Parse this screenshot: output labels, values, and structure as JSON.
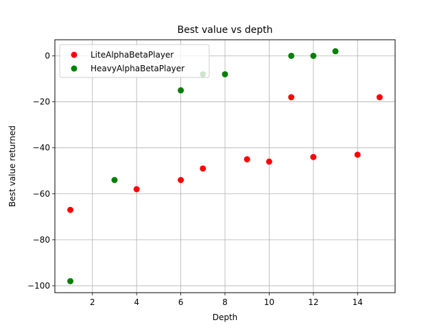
{
  "chart_data": {
    "type": "scatter",
    "title": "Best value vs depth",
    "xlabel": "Depth",
    "ylabel": "Best value returned",
    "xlim": [
      0.3,
      15.7
    ],
    "ylim": [
      -103,
      7
    ],
    "xticks": [
      2,
      4,
      6,
      8,
      10,
      12,
      14
    ],
    "yticks": [
      -100,
      -80,
      -60,
      -40,
      -20,
      0
    ],
    "grid": true,
    "legend_position": "upper-left",
    "series": [
      {
        "name": "LiteAlphaBetaPlayer",
        "color": "#ff0000",
        "points": [
          {
            "x": 1,
            "y": -67
          },
          {
            "x": 4,
            "y": -58
          },
          {
            "x": 6,
            "y": -54
          },
          {
            "x": 7,
            "y": -49
          },
          {
            "x": 9,
            "y": -45
          },
          {
            "x": 10,
            "y": -46
          },
          {
            "x": 11,
            "y": -18
          },
          {
            "x": 12,
            "y": -44
          },
          {
            "x": 14,
            "y": -43
          },
          {
            "x": 15,
            "y": -18
          }
        ]
      },
      {
        "name": "HeavyAlphaBetaPlayer",
        "color": "#008000",
        "points": [
          {
            "x": 1,
            "y": -98
          },
          {
            "x": 3,
            "y": -54
          },
          {
            "x": 6,
            "y": -15
          },
          {
            "x": 7,
            "y": -8
          },
          {
            "x": 8,
            "y": -8
          },
          {
            "x": 11,
            "y": 0
          },
          {
            "x": 12,
            "y": 0
          },
          {
            "x": 13,
            "y": 2
          }
        ]
      }
    ]
  }
}
